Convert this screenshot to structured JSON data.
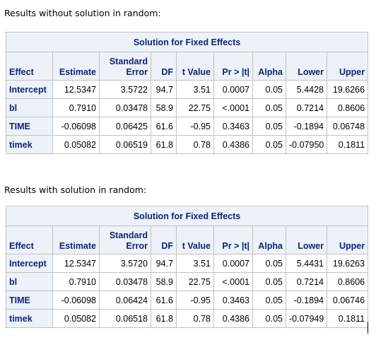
{
  "sections": [
    {
      "caption": "Results without solution in random:",
      "table_title": "Solution for Fixed Effects",
      "columns": [
        "Effect",
        "Estimate",
        "Standard\nError",
        "DF",
        "t Value",
        "Pr > |t|",
        "Alpha",
        "Lower",
        "Upper"
      ],
      "rows": [
        [
          "Intercept",
          "12.5347",
          "3.5722",
          "94.7",
          "3.51",
          "0.0007",
          "0.05",
          "5.4428",
          "19.6266"
        ],
        [
          "bl",
          "0.7910",
          "0.03478",
          "58.9",
          "22.75",
          "<.0001",
          "0.05",
          "0.7214",
          "0.8606"
        ],
        [
          "TIME",
          "-0.06098",
          "0.06425",
          "61.6",
          "-0.95",
          "0.3463",
          "0.05",
          "-0.1894",
          "0.06748"
        ],
        [
          "timek",
          "0.05082",
          "0.06519",
          "61.8",
          "0.78",
          "0.4386",
          "0.05",
          "-0.07950",
          "0.1811"
        ]
      ]
    },
    {
      "caption": "Results with solution in random:",
      "table_title": "Solution for Fixed Effects",
      "columns": [
        "Effect",
        "Estimate",
        "Standard\nError",
        "DF",
        "t Value",
        "Pr > |t|",
        "Alpha",
        "Lower",
        "Upper"
      ],
      "rows": [
        [
          "Intercept",
          "12.5347",
          "3.5720",
          "94.7",
          "3.51",
          "0.0007",
          "0.05",
          "5.4431",
          "19.6263"
        ],
        [
          "bl",
          "0.7910",
          "0.03478",
          "58.9",
          "22.75",
          "<.0001",
          "0.05",
          "0.7214",
          "0.8606"
        ],
        [
          "TIME",
          "-0.06098",
          "0.06424",
          "61.6",
          "-0.95",
          "0.3463",
          "0.05",
          "-0.1894",
          "0.06746"
        ],
        [
          "timek",
          "0.05082",
          "0.06518",
          "61.8",
          "0.78",
          "0.4386",
          "0.05",
          "-0.07949",
          "0.1811"
        ]
      ]
    }
  ]
}
